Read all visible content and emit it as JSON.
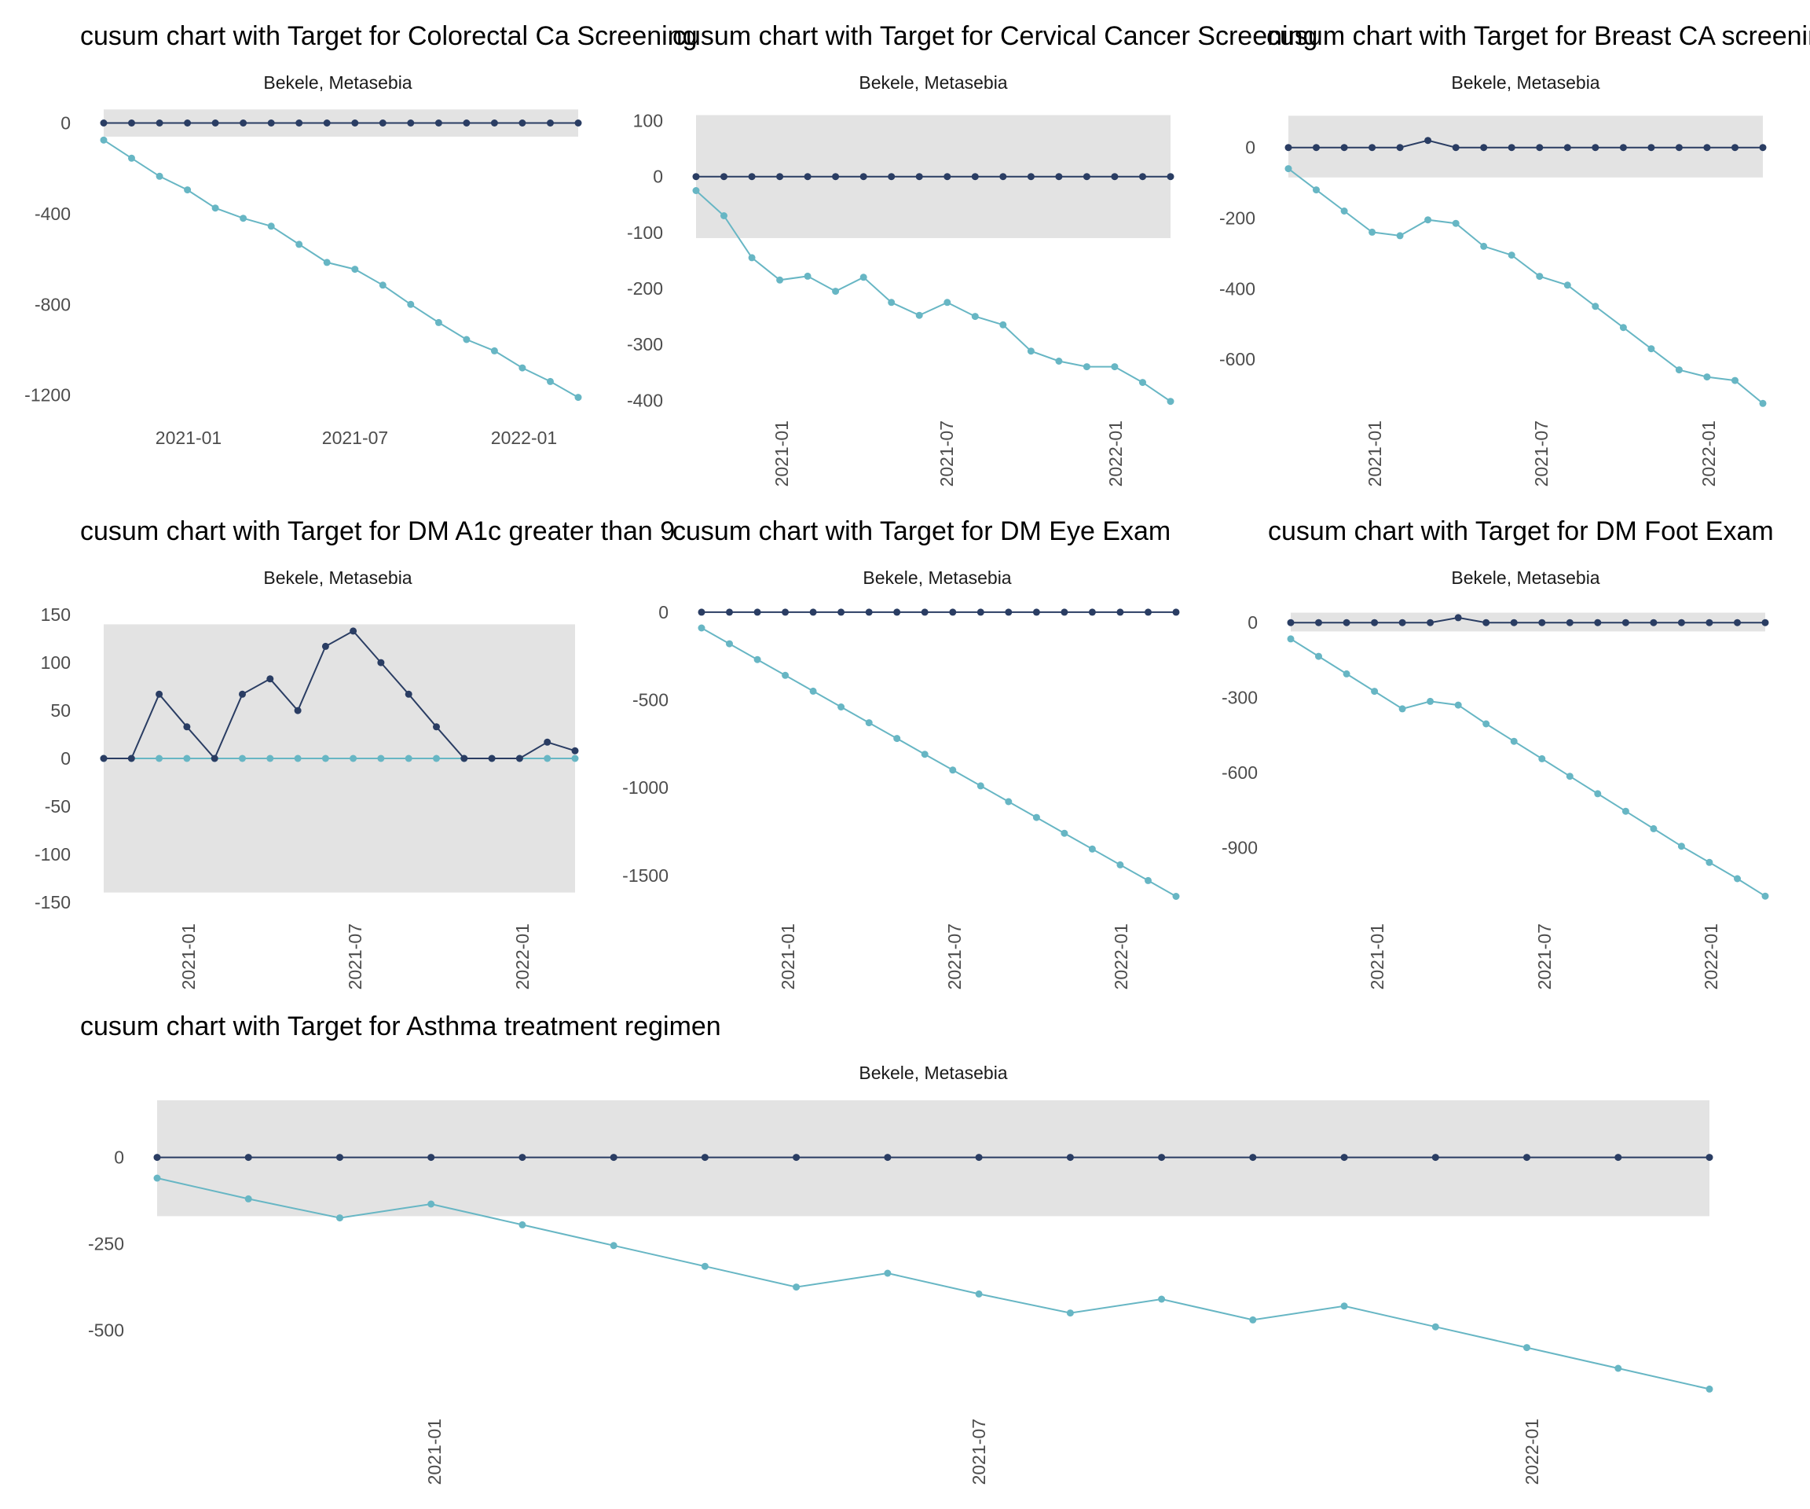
{
  "colors": {
    "band": "#e3e3e3",
    "upper": "#2a3d63",
    "lower": "#67b6c4",
    "background": "#ffffff"
  },
  "chart_data": [
    {
      "type": "line",
      "title": "cusum chart with Target for Colorectal Ca Screening",
      "subtitle": "Bekele, Metasebia",
      "x_tick_labels": [
        "2021-01",
        "2021-07",
        "2022-01"
      ],
      "x_tick_rotation": 0,
      "y_ticks": [
        0,
        -400,
        -800,
        -1200
      ],
      "ylim": [
        -1260,
        40
      ],
      "band": [
        -60,
        60
      ],
      "series": [
        {
          "name": "upper",
          "values": [
            0,
            0,
            0,
            0,
            0,
            0,
            0,
            0,
            0,
            0,
            0,
            0,
            0,
            0,
            0,
            0,
            0,
            0
          ]
        },
        {
          "name": "lower",
          "values": [
            -75,
            -155,
            -235,
            -295,
            -375,
            -420,
            -455,
            -535,
            -615,
            -645,
            -715,
            -800,
            -880,
            -955,
            -1005,
            -1080,
            -1140,
            -1210
          ]
        }
      ]
    },
    {
      "type": "line",
      "title": "cusum chart with Target for Cervical Cancer Screening",
      "subtitle": "Bekele, Metasebia",
      "x_tick_labels": [
        "2021-01",
        "2021-07",
        "2022-01"
      ],
      "x_tick_rotation": -90,
      "y_ticks": [
        100,
        0,
        -100,
        -200,
        -300,
        -400
      ],
      "ylim": [
        -415,
        112
      ],
      "band": [
        -110,
        110
      ],
      "series": [
        {
          "name": "upper",
          "values": [
            0,
            0,
            0,
            0,
            0,
            0,
            0,
            0,
            0,
            0,
            0,
            0,
            0,
            0,
            0,
            0,
            0,
            0
          ]
        },
        {
          "name": "lower",
          "values": [
            -25,
            -70,
            -145,
            -185,
            -178,
            -205,
            -180,
            -225,
            -248,
            -225,
            -250,
            -265,
            -312,
            -330,
            -340,
            -340,
            -368,
            -402
          ]
        }
      ]
    },
    {
      "type": "line",
      "title": "cusum chart with Target for Breast CA screening",
      "subtitle": "Bekele, Metasebia",
      "x_tick_labels": [
        "2021-01",
        "2021-07",
        "2022-01"
      ],
      "x_tick_rotation": -90,
      "y_ticks": [
        0,
        -200,
        -400,
        -600
      ],
      "ylim": [
        -740,
        95
      ],
      "band": [
        -85,
        90
      ],
      "series": [
        {
          "name": "upper",
          "values": [
            0,
            0,
            0,
            0,
            0,
            20,
            0,
            0,
            0,
            0,
            0,
            0,
            0,
            0,
            0,
            0,
            0,
            0
          ]
        },
        {
          "name": "lower",
          "values": [
            -60,
            -120,
            -180,
            -240,
            -250,
            -205,
            -215,
            -280,
            -305,
            -365,
            -390,
            -450,
            -510,
            -570,
            -630,
            -650,
            -660,
            -725
          ]
        }
      ]
    },
    {
      "type": "line",
      "title": "cusum chart with Target for DM A1c greater than 9",
      "subtitle": "Bekele, Metasebia",
      "x_tick_labels": [
        "2021-01",
        "2021-07",
        "2022-01"
      ],
      "x_tick_rotation": -90,
      "y_ticks": [
        150,
        100,
        50,
        0,
        -50,
        -100,
        -150
      ],
      "ylim": [
        -160,
        160
      ],
      "band": [
        -140,
        140
      ],
      "series": [
        {
          "name": "upper",
          "values": [
            0,
            0,
            67,
            33,
            0,
            67,
            83,
            50,
            117,
            133,
            100,
            67,
            33,
            0,
            0,
            0,
            17,
            8
          ]
        },
        {
          "name": "lower",
          "values": [
            0,
            0,
            0,
            0,
            0,
            0,
            0,
            0,
            0,
            0,
            0,
            0,
            0,
            0,
            0,
            0,
            0,
            0
          ]
        }
      ]
    },
    {
      "type": "line",
      "title": "cusum chart with Target for DM Eye Exam",
      "subtitle": "Bekele, Metasebia",
      "x_tick_labels": [
        "2021-01",
        "2021-07",
        "2022-01"
      ],
      "x_tick_rotation": -90,
      "y_ticks": [
        0,
        -500,
        -1000,
        -1500
      ],
      "ylim": [
        -1640,
        40
      ],
      "band": [
        0,
        0
      ],
      "series": [
        {
          "name": "upper",
          "values": [
            0,
            0,
            0,
            0,
            0,
            0,
            0,
            0,
            0,
            0,
            0,
            0,
            0,
            0,
            0,
            0,
            0,
            0
          ]
        },
        {
          "name": "lower",
          "values": [
            -90,
            -180,
            -270,
            -360,
            -450,
            -540,
            -630,
            -720,
            -810,
            -900,
            -990,
            -1080,
            -1170,
            -1260,
            -1350,
            -1440,
            -1530,
            -1620
          ]
        }
      ]
    },
    {
      "type": "line",
      "title": "cusum chart with Target for DM Foot Exam",
      "subtitle": "Bekele, Metasebia",
      "x_tick_labels": [
        "2021-01",
        "2021-07",
        "2022-01"
      ],
      "x_tick_rotation": -90,
      "y_ticks": [
        0,
        -300,
        -600,
        -900
      ],
      "ylim": [
        -1110,
        70
      ],
      "band": [
        -35,
        40
      ],
      "series": [
        {
          "name": "upper",
          "values": [
            0,
            0,
            0,
            0,
            0,
            0,
            20,
            0,
            0,
            0,
            0,
            0,
            0,
            0,
            0,
            0,
            0,
            0
          ]
        },
        {
          "name": "lower",
          "values": [
            -65,
            -135,
            -205,
            -275,
            -345,
            -315,
            -330,
            -405,
            -475,
            -545,
            -615,
            -685,
            -755,
            -825,
            -895,
            -960,
            -1025,
            -1095
          ]
        }
      ]
    },
    {
      "type": "line",
      "title": "cusum chart with Target for Asthma treatment regimen",
      "subtitle": "Bekele, Metasebia",
      "x_tick_labels": [
        "2021-01",
        "2021-07",
        "2022-01"
      ],
      "x_tick_rotation": -90,
      "y_ticks": [
        0,
        -250,
        -500
      ],
      "ylim": [
        -710,
        165
      ],
      "band": [
        -170,
        165
      ],
      "series": [
        {
          "name": "upper",
          "values": [
            0,
            0,
            0,
            0,
            0,
            0,
            0,
            0,
            0,
            0,
            0,
            0,
            0,
            0,
            0,
            0,
            0,
            0
          ]
        },
        {
          "name": "lower",
          "values": [
            -60,
            -120,
            -175,
            -135,
            -195,
            -255,
            -315,
            -375,
            -335,
            -395,
            -450,
            -410,
            -470,
            -430,
            -490,
            -550,
            -610,
            -670
          ]
        }
      ]
    }
  ]
}
